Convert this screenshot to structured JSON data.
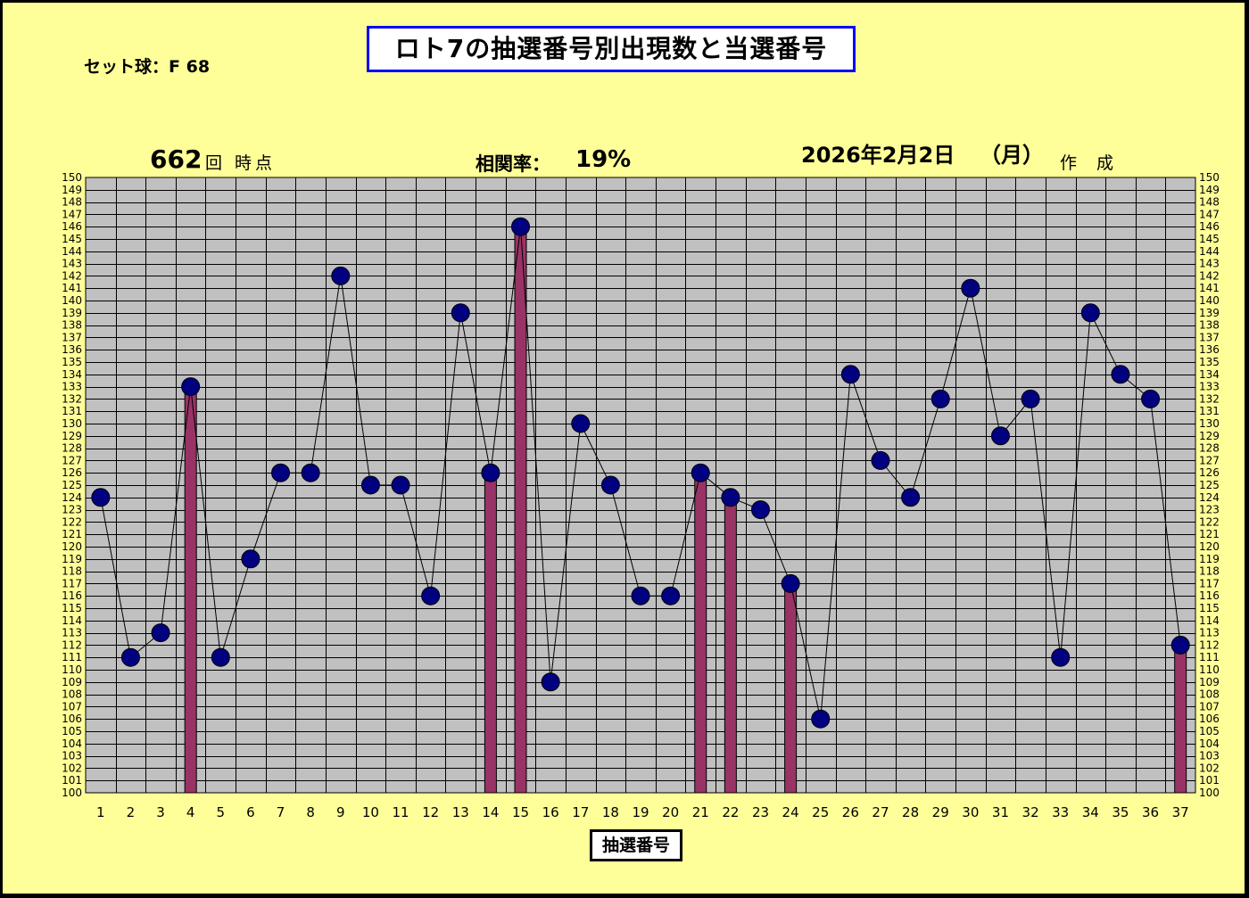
{
  "header": {
    "title": "ロト7の抽選番号別出現数と当選番号",
    "set_ball": "セット球：F 68",
    "draw_count": "662",
    "draw_suffix": "回 時点",
    "correlation_label": "相関率：",
    "correlation_value": "19%",
    "date": "2026年2月2日",
    "weekday": "（月）",
    "made_label": "作 成"
  },
  "colors": {
    "background": "#FFFF99",
    "plot_area": "#C0C0C0",
    "bar": "#993366",
    "marker": "#000080",
    "title_border": "#0000FF"
  },
  "chart_data": {
    "type": "bar+line",
    "xlabel": "抽選番号",
    "categories": [
      1,
      2,
      3,
      4,
      5,
      6,
      7,
      8,
      9,
      10,
      11,
      12,
      13,
      14,
      15,
      16,
      17,
      18,
      19,
      20,
      21,
      22,
      23,
      24,
      25,
      26,
      27,
      28,
      29,
      30,
      31,
      32,
      33,
      34,
      35,
      36,
      37
    ],
    "series": [
      {
        "type": "line",
        "values": [
          124,
          111,
          113,
          133,
          111,
          119,
          126,
          126,
          142,
          125,
          125,
          116,
          139,
          126,
          146,
          109,
          130,
          125,
          116,
          116,
          126,
          124,
          123,
          117,
          106,
          134,
          127,
          124,
          132,
          141,
          129,
          132,
          111,
          139,
          134,
          132,
          112
        ]
      },
      {
        "type": "bar",
        "winning_numbers": [
          4,
          14,
          15,
          21,
          22,
          24,
          37
        ]
      }
    ],
    "ylim": [
      100,
      150
    ],
    "yticks_step": 1,
    "grid": true,
    "y_axis_both_sides": true
  }
}
